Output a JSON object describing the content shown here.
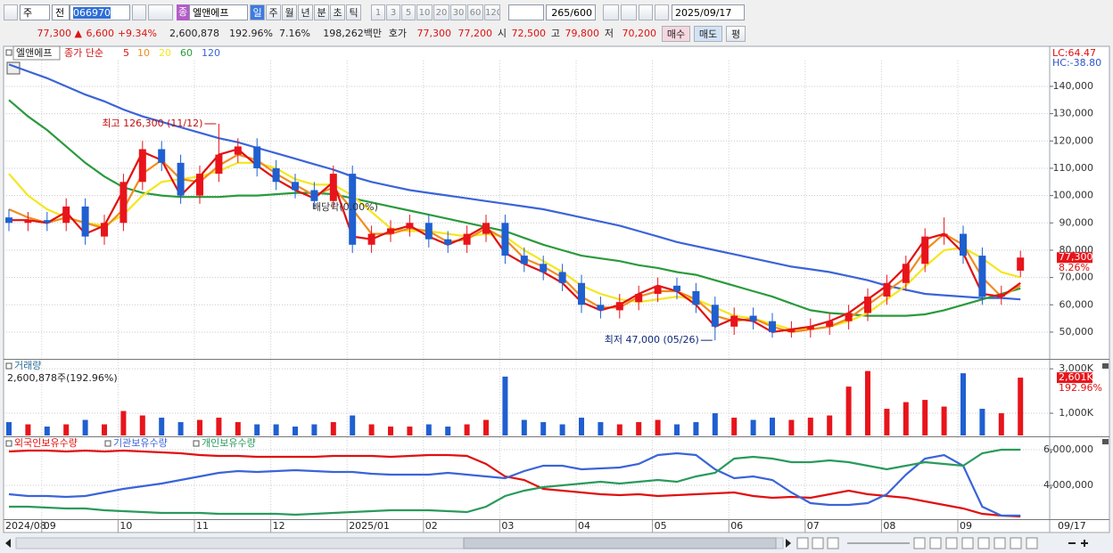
{
  "toolbar": {
    "period_unit": "주",
    "compare": "전",
    "code": "066970",
    "name_badge": "종",
    "name": "엘앤에프",
    "periods": [
      "일",
      "주",
      "월",
      "년",
      "분",
      "초",
      "틱"
    ],
    "intervals": [
      "1",
      "3",
      "5",
      "10",
      "20",
      "30",
      "60",
      "120"
    ],
    "count": "265/600",
    "date": "2025/09/17"
  },
  "quote": {
    "price": "77,300 ▲",
    "change": "6,600",
    "rate": "+9.34%",
    "volume": "2,600,878",
    "volume_rate": "192.96%",
    "turnover": "7.16%",
    "amount": "198,262백만",
    "ask_label": "호가",
    "ask": "77,300",
    "bid": "77,200",
    "open_label": "시",
    "open": "72,500",
    "high_label": "고",
    "high": "79,800",
    "low_label": "저",
    "low": "70,200",
    "buy": "매수",
    "sell": "매도",
    "eval": "평"
  },
  "date_readout": "09/17",
  "chart_data": [
    {
      "type": "candlestick",
      "legend_title": "엘앤에프",
      "series_label": "종가 단순",
      "up_color": "#e8141b",
      "down_color": "#1f5fd0",
      "open": [
        92000,
        90000,
        91000,
        90000,
        96000,
        85000,
        90000,
        105000,
        117000,
        112000,
        100000,
        108000,
        115000,
        118000,
        110000,
        105000,
        102000,
        98000,
        108000,
        82000,
        86000,
        88000,
        90000,
        84000,
        82000,
        86000,
        90000,
        78000,
        75000,
        72000,
        68000,
        60000,
        58000,
        61000,
        64000,
        67000,
        65000,
        60000,
        52000,
        56000,
        54000,
        50000,
        51000,
        52000,
        54000,
        57000,
        63000,
        68000,
        75000,
        85000,
        86000,
        78000,
        63000,
        72500
      ],
      "high": [
        95000,
        94000,
        94000,
        99000,
        99000,
        93000,
        108000,
        120000,
        120000,
        115000,
        111000,
        126300,
        121000,
        121000,
        113000,
        108000,
        105000,
        111000,
        111000,
        89000,
        91000,
        93000,
        93000,
        87000,
        89000,
        93000,
        93000,
        81000,
        78000,
        75000,
        71000,
        63000,
        64000,
        67000,
        70000,
        70000,
        68000,
        63000,
        59000,
        59000,
        57000,
        54000,
        55000,
        57000,
        60000,
        66000,
        71000,
        78000,
        88000,
        92000,
        89000,
        81000,
        67000,
        79800
      ],
      "low": [
        87000,
        87000,
        87000,
        87000,
        82000,
        82000,
        87000,
        102000,
        109000,
        97000,
        97000,
        105000,
        112000,
        107000,
        102000,
        99000,
        95000,
        95000,
        79000,
        79000,
        83000,
        85000,
        81000,
        79000,
        79000,
        83000,
        75000,
        72000,
        69000,
        65000,
        57000,
        55000,
        55000,
        58000,
        61000,
        62000,
        57000,
        47000,
        49000,
        51000,
        48000,
        48000,
        48000,
        49000,
        51000,
        54000,
        60000,
        65000,
        72000,
        82000,
        75000,
        60000,
        60000,
        70200
      ],
      "close": [
        90000,
        91000,
        90000,
        96000,
        85000,
        90000,
        105000,
        117000,
        112000,
        100000,
        108000,
        115000,
        118000,
        110000,
        105000,
        102000,
        98000,
        108000,
        82000,
        86000,
        88000,
        90000,
        84000,
        82000,
        86000,
        90000,
        78000,
        75000,
        72000,
        68000,
        60000,
        58000,
        61000,
        64000,
        67000,
        65000,
        60000,
        52000,
        56000,
        54000,
        50000,
        51000,
        52000,
        54000,
        57000,
        63000,
        68000,
        75000,
        85000,
        86000,
        78000,
        63000,
        64000,
        77300
      ],
      "lines": [
        {
          "name": "5",
          "color": "#e01010",
          "values": [
            91000,
            91000,
            90000,
            94000,
            86000,
            89000,
            102000,
            116000,
            113000,
            100000,
            107000,
            115000,
            117000,
            111000,
            106000,
            102000,
            99000,
            105000,
            85000,
            84000,
            87000,
            89000,
            85000,
            82000,
            85000,
            89000,
            79000,
            75000,
            72000,
            68000,
            61000,
            58000,
            60000,
            64000,
            67000,
            65000,
            60000,
            52000,
            55000,
            54000,
            50000,
            51000,
            52000,
            54000,
            57000,
            62000,
            67000,
            74000,
            84000,
            86000,
            79000,
            64000,
            63000,
            68000
          ]
        },
        {
          "name": "10",
          "color": "#f08c1e",
          "values": [
            95000,
            92000,
            90000,
            92000,
            90000,
            88000,
            95000,
            108000,
            113000,
            106000,
            105000,
            111000,
            115000,
            113000,
            108000,
            104000,
            100000,
            103000,
            95000,
            86000,
            86000,
            88000,
            87000,
            83000,
            84000,
            88000,
            84000,
            77000,
            74000,
            70000,
            63000,
            59000,
            59000,
            63000,
            65000,
            65000,
            62000,
            56000,
            54000,
            55000,
            52000,
            50000,
            51000,
            52000,
            55000,
            60000,
            65000,
            70000,
            80000,
            86000,
            82000,
            70000,
            63000,
            67000
          ]
        },
        {
          "name": "20",
          "color": "#f5e61e",
          "values": [
            108000,
            100000,
            95000,
            92000,
            90000,
            89000,
            93000,
            100000,
            105000,
            106000,
            107000,
            109000,
            112000,
            112000,
            110000,
            106000,
            104000,
            104000,
            100000,
            94000,
            88000,
            87000,
            87000,
            86000,
            85000,
            86000,
            85000,
            80000,
            76000,
            72000,
            67000,
            64000,
            62000,
            61000,
            62000,
            63000,
            62000,
            59000,
            56000,
            55000,
            53000,
            51000,
            51000,
            52000,
            54000,
            57000,
            62000,
            67000,
            74000,
            80000,
            81000,
            77000,
            72000,
            70000
          ]
        },
        {
          "name": "60",
          "color": "#2a9a3c",
          "values": [
            135000,
            129000,
            124000,
            118000,
            112000,
            107000,
            103000,
            101000,
            100000,
            99500,
            99500,
            99500,
            100000,
            100000,
            100500,
            101000,
            101000,
            100500,
            99000,
            97500,
            96000,
            94500,
            93000,
            91500,
            90000,
            88500,
            87000,
            84500,
            82000,
            80000,
            78000,
            77000,
            76000,
            74500,
            73500,
            72000,
            71000,
            69000,
            67000,
            65000,
            63000,
            60500,
            58000,
            57000,
            56500,
            56000,
            56000,
            56000,
            56500,
            58000,
            60000,
            62000,
            64000,
            66000
          ]
        },
        {
          "name": "120",
          "color": "#3a64d8",
          "values": [
            148000,
            145500,
            143000,
            140000,
            137000,
            134500,
            131500,
            129000,
            127000,
            125000,
            123000,
            121000,
            119500,
            117500,
            115500,
            113500,
            111500,
            109500,
            107000,
            105000,
            103500,
            102000,
            101000,
            100000,
            99000,
            98000,
            97000,
            96000,
            95000,
            93500,
            92000,
            90500,
            89000,
            87000,
            85000,
            83000,
            81500,
            80000,
            78500,
            77000,
            75500,
            74000,
            73000,
            72000,
            70500,
            69000,
            67000,
            65500,
            64000,
            63500,
            63000,
            62500,
            62500,
            62000
          ]
        }
      ],
      "ylim": [
        40200,
        149450
      ],
      "yticks": [
        {
          "value": 50000,
          "label": "50,000"
        },
        {
          "value": 60000,
          "label": "60,000"
        },
        {
          "value": 70000,
          "label": "70,000"
        },
        {
          "value": 80000,
          "label": "80,000"
        },
        {
          "value": 90000,
          "label": "90,000"
        },
        {
          "value": 100000,
          "label": "100,000"
        },
        {
          "value": 110000,
          "label": "110,000"
        },
        {
          "value": 120000,
          "label": "120,000"
        },
        {
          "value": 130000,
          "label": "130,000"
        },
        {
          "value": 140000,
          "label": "140,000"
        }
      ],
      "grid": true,
      "annotations": {
        "high": "최고 126,300 (11/12)",
        "low": "최저 47,000 (05/26)",
        "dividend": "배당락(0.00%)"
      },
      "lc": "LC:64.47",
      "hc": "HC:-38.80",
      "last_label": "77,300",
      "last_rate": "8.26%"
    },
    {
      "type": "bar",
      "title": "거래량",
      "summary": "2,600,878주(192.96%)",
      "up_color": "#e8141b",
      "down_color": "#1f5fd0",
      "values": [
        600000,
        500000,
        400000,
        500000,
        700000,
        500000,
        1100000,
        900000,
        800000,
        600000,
        700000,
        800000,
        600000,
        500000,
        500000,
        400000,
        500000,
        600000,
        900000,
        500000,
        400000,
        400000,
        500000,
        400000,
        500000,
        700000,
        2650000,
        700000,
        600000,
        500000,
        800000,
        600000,
        500000,
        600000,
        700000,
        500000,
        600000,
        1000000,
        800000,
        700000,
        800000,
        700000,
        800000,
        900000,
        2200000,
        2900000,
        1200000,
        1500000,
        1600000,
        1300000,
        2800000,
        1200000,
        1000000,
        2600878
      ],
      "ylim": [
        0,
        3367000
      ],
      "yticks": [
        {
          "value": 1000000,
          "label": "1,000K"
        },
        {
          "value": 3000000,
          "label": "3,000K"
        }
      ],
      "grid": true,
      "last_label": "2,601K",
      "last_rate": "192.96%"
    },
    {
      "type": "line",
      "categories": [
        "2024/08",
        null,
        "09",
        null,
        null,
        null,
        "10",
        null,
        null,
        null,
        "11",
        null,
        null,
        null,
        "12",
        null,
        null,
        null,
        "2025/01",
        null,
        null,
        null,
        "02",
        null,
        null,
        null,
        "03",
        null,
        null,
        null,
        "04",
        null,
        null,
        null,
        "05",
        null,
        null,
        null,
        "06",
        null,
        null,
        null,
        "07",
        null,
        null,
        null,
        "08",
        null,
        null,
        null,
        "09",
        null,
        null,
        null
      ],
      "series": [
        {
          "name": "외국인보유수량",
          "color": "#e01010",
          "values": [
            5900000,
            5950000,
            5950000,
            5900000,
            5950000,
            5900000,
            5950000,
            5900000,
            5850000,
            5800000,
            5700000,
            5650000,
            5650000,
            5600000,
            5600000,
            5600000,
            5600000,
            5650000,
            5650000,
            5650000,
            5600000,
            5650000,
            5700000,
            5700000,
            5650000,
            5200000,
            4500000,
            4300000,
            3800000,
            3700000,
            3600000,
            3500000,
            3450000,
            3500000,
            3400000,
            3450000,
            3500000,
            3550000,
            3600000,
            3400000,
            3300000,
            3350000,
            3300000,
            3500000,
            3700000,
            3500000,
            3400000,
            3300000,
            3100000,
            2900000,
            2700000,
            2400000,
            2300000,
            2250000
          ]
        },
        {
          "name": "기관보유수량",
          "color": "#3a64d8",
          "values": [
            3500000,
            3400000,
            3400000,
            3350000,
            3400000,
            3600000,
            3800000,
            3950000,
            4100000,
            4300000,
            4500000,
            4700000,
            4800000,
            4750000,
            4800000,
            4850000,
            4800000,
            4750000,
            4750000,
            4650000,
            4600000,
            4600000,
            4600000,
            4700000,
            4600000,
            4500000,
            4400000,
            4800000,
            5100000,
            5100000,
            4900000,
            4950000,
            5000000,
            5200000,
            5700000,
            5800000,
            5700000,
            4900000,
            4400000,
            4500000,
            4300000,
            3600000,
            3000000,
            2900000,
            2900000,
            3000000,
            3500000,
            4600000,
            5500000,
            5700000,
            5100000,
            2800000,
            2300000,
            2300000
          ]
        },
        {
          "name": "개인보유수량",
          "color": "#2a9a5c",
          "values": [
            2800000,
            2800000,
            2750000,
            2700000,
            2700000,
            2600000,
            2550000,
            2500000,
            2450000,
            2450000,
            2450000,
            2400000,
            2400000,
            2400000,
            2400000,
            2350000,
            2400000,
            2450000,
            2500000,
            2550000,
            2600000,
            2600000,
            2600000,
            2550000,
            2500000,
            2800000,
            3400000,
            3700000,
            3900000,
            4000000,
            4100000,
            4200000,
            4100000,
            4200000,
            4300000,
            4200000,
            4500000,
            4700000,
            5500000,
            5600000,
            5500000,
            5300000,
            5300000,
            5400000,
            5300000,
            5100000,
            4900000,
            5100000,
            5300000,
            5200000,
            5100000,
            5800000,
            6000000,
            6000000
          ]
        }
      ],
      "ylim": [
        2100000,
        6600000
      ],
      "yticks": [
        {
          "value": 4000000,
          "label": "4,000,000"
        },
        {
          "value": 6000000,
          "label": "6,000,000"
        }
      ],
      "grid": true
    }
  ]
}
